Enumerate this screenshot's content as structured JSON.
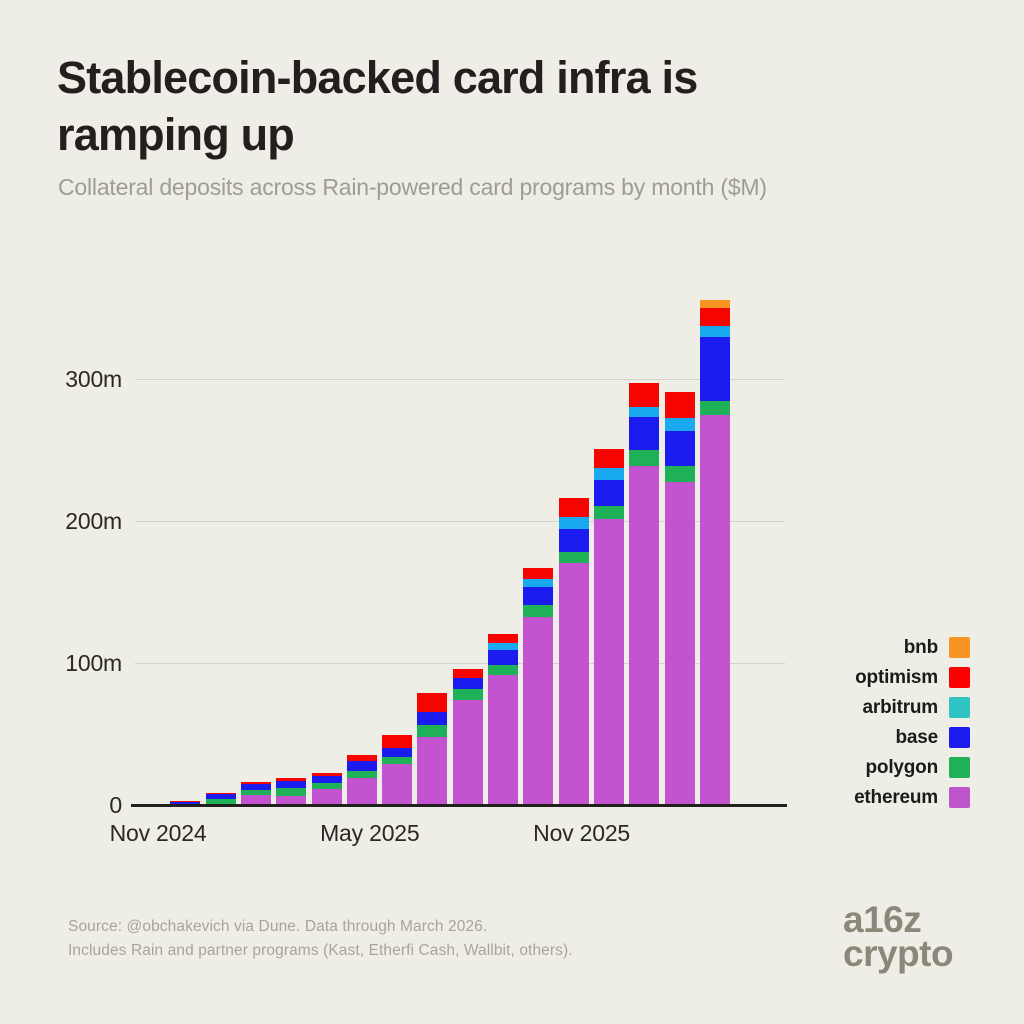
{
  "page": {
    "background": "#efeee6"
  },
  "header": {
    "title": "Stablecoin-backed card infra is ramping up",
    "title_line1": "Stablecoin-backed card infra is",
    "title_line2": "ramping up",
    "subtitle": "Collateral deposits across Rain-powered card programs by month ($M)"
  },
  "chart_data": {
    "type": "bar",
    "stacked": true,
    "title": "Stablecoin-backed card infra is ramping up",
    "subtitle": "Collateral deposits across Rain-powered card programs by month ($M)",
    "units": "$M",
    "grid": "horizontal",
    "legend_position": "right",
    "ylim": [
      0,
      363
    ],
    "x": [
      "Nov 2024",
      "Dec 2024",
      "Jan 2025",
      "Feb 2025",
      "Mar 2025",
      "Apr 2025",
      "May 2025",
      "Jun 2025",
      "Jul 2025",
      "Aug 2025",
      "Sep 2025",
      "Oct 2025",
      "Nov 2025",
      "Dec 2025",
      "Jan 2026",
      "Feb 2026",
      "Mar 2026"
    ],
    "x_tick_labels": [
      {
        "index": 0,
        "label": "Nov 2024"
      },
      {
        "index": 6,
        "label": "May 2025"
      },
      {
        "index": 12,
        "label": "Nov 2025"
      }
    ],
    "y_ticks": [
      {
        "value": 0,
        "label": "0"
      },
      {
        "value": 100,
        "label": "100m"
      },
      {
        "value": 200,
        "label": "200m"
      },
      {
        "value": 300,
        "label": "300m"
      }
    ],
    "series": [
      {
        "name": "ethereum",
        "color": "#c353ce",
        "values": [
          0.4,
          0.4,
          0.7,
          8,
          7,
          12,
          20,
          29.5,
          48.5,
          75,
          92,
          133,
          171,
          202,
          239.5,
          228.5,
          275.5
        ]
      },
      {
        "name": "polygon",
        "color": "#1fb158",
        "values": [
          0,
          0.3,
          4,
          3.5,
          6,
          4,
          4.7,
          4.7,
          8.3,
          7.1,
          7.1,
          8.3,
          7.8,
          9.4,
          11.3,
          10.8,
          9.4
        ]
      },
      {
        "name": "base",
        "color": "#1b1bf0",
        "values": [
          0,
          1.8,
          3.5,
          4,
          4.7,
          5.2,
          7,
          6.6,
          9.4,
          7.8,
          10.6,
          13,
          16.5,
          18.4,
          22.9,
          24.8,
          45.3
        ]
      },
      {
        "name": "arbitrum",
        "color": "#18a9ef",
        "values": [
          0,
          0,
          0,
          0,
          0,
          0,
          0,
          0,
          0,
          0,
          5.4,
          5.9,
          8.3,
          8.3,
          7.5,
          9.4,
          7.5
        ]
      },
      {
        "name": "optimism",
        "color": "#f60500",
        "values": [
          1.3,
          1,
          1,
          1.5,
          2.3,
          2.3,
          4,
          9.4,
          13.7,
          6.4,
          5.7,
          7.5,
          13,
          13,
          16.8,
          18.2,
          13.2
        ]
      },
      {
        "name": "bnb",
        "color": "#f89522",
        "values": [
          0,
          0,
          0,
          0,
          0,
          0,
          0,
          0,
          0,
          0,
          0,
          0,
          0,
          0,
          0,
          0,
          5.2
        ]
      }
    ],
    "legend": [
      {
        "label": "bnb",
        "color": "#f89522"
      },
      {
        "label": "optimism",
        "color": "#fa0000"
      },
      {
        "label": "arbitrum",
        "color": "#2fc3c3"
      },
      {
        "label": "base",
        "color": "#1b1bf0"
      },
      {
        "label": "polygon",
        "color": "#1fb158"
      },
      {
        "label": "ethereum",
        "color": "#bf55cd"
      }
    ]
  },
  "footer": {
    "source_line1": "Source: @obchakevich via Dune. Data through March 2026.",
    "source_line2": "Includes Rain and partner programs (Kast, Etherfi Cash, Wallbit, others).",
    "logo_line1": "a16z",
    "logo_line2": "crypto"
  }
}
